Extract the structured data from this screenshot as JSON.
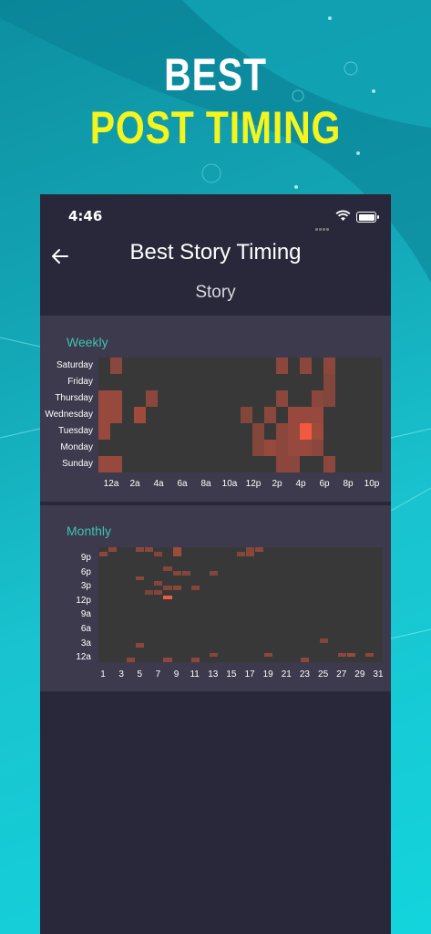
{
  "promo": {
    "line1": "BEST",
    "line2": "POST TIMING"
  },
  "status_bar": {
    "time": "4:46"
  },
  "header": {
    "title": "Best Story Timing",
    "subtitle": "Story"
  },
  "colors": {
    "accent_teal": "#3ec3b3",
    "headline_yellow": "#f5f51e",
    "heat_base": "#393838",
    "heat_hot": "#f25a40"
  },
  "weekly": {
    "title": "Weekly",
    "rows": [
      "Saturday",
      "Friday",
      "Thursday",
      "Wednesday",
      "Tuesday",
      "Monday",
      "Sunday"
    ],
    "x_ticks": [
      "12a",
      "2a",
      "4a",
      "6a",
      "8a",
      "10a",
      "12p",
      "2p",
      "4p",
      "6p",
      "8p",
      "10p"
    ],
    "cells": [
      {
        "hour": 1,
        "day": 0,
        "level": 0.45
      },
      {
        "hour": 15,
        "day": 0,
        "level": 0.45
      },
      {
        "hour": 17,
        "day": 0,
        "level": 0.45
      },
      {
        "hour": 19,
        "day": 0,
        "level": 0.45
      },
      {
        "hour": 19,
        "day": 1,
        "level": 0.4
      },
      {
        "hour": 0,
        "day": 2,
        "level": 0.5
      },
      {
        "hour": 1,
        "day": 2,
        "level": 0.5
      },
      {
        "hour": 4,
        "day": 2,
        "level": 0.45
      },
      {
        "hour": 15,
        "day": 2,
        "level": 0.45
      },
      {
        "hour": 18,
        "day": 2,
        "level": 0.45
      },
      {
        "hour": 19,
        "day": 2,
        "level": 0.4
      },
      {
        "hour": 0,
        "day": 3,
        "level": 0.5
      },
      {
        "hour": 1,
        "day": 3,
        "level": 0.5
      },
      {
        "hour": 3,
        "day": 3,
        "level": 0.55
      },
      {
        "hour": 12,
        "day": 3,
        "level": 0.4
      },
      {
        "hour": 14,
        "day": 3,
        "level": 0.45
      },
      {
        "hour": 16,
        "day": 3,
        "level": 0.5
      },
      {
        "hour": 17,
        "day": 3,
        "level": 0.5
      },
      {
        "hour": 18,
        "day": 3,
        "level": 0.5
      },
      {
        "hour": 0,
        "day": 4,
        "level": 0.5
      },
      {
        "hour": 13,
        "day": 4,
        "level": 0.4
      },
      {
        "hour": 15,
        "day": 4,
        "level": 0.45
      },
      {
        "hour": 16,
        "day": 4,
        "level": 0.5
      },
      {
        "hour": 17,
        "day": 4,
        "level": 1.0
      },
      {
        "hour": 18,
        "day": 4,
        "level": 0.55
      },
      {
        "hour": 13,
        "day": 5,
        "level": 0.4
      },
      {
        "hour": 14,
        "day": 5,
        "level": 0.5
      },
      {
        "hour": 15,
        "day": 5,
        "level": 0.45
      },
      {
        "hour": 16,
        "day": 5,
        "level": 0.5
      },
      {
        "hour": 17,
        "day": 5,
        "level": 0.5
      },
      {
        "hour": 18,
        "day": 5,
        "level": 0.45
      },
      {
        "hour": 0,
        "day": 6,
        "level": 0.5
      },
      {
        "hour": 1,
        "day": 6,
        "level": 0.5
      },
      {
        "hour": 15,
        "day": 6,
        "level": 0.45
      },
      {
        "hour": 16,
        "day": 6,
        "level": 0.45
      },
      {
        "hour": 19,
        "day": 6,
        "level": 0.45
      }
    ]
  },
  "monthly": {
    "title": "Monthly",
    "rows": [
      "9p",
      "6p",
      "3p",
      "12p",
      "9a",
      "6a",
      "3a",
      "12a"
    ],
    "x_ticks": [
      "1",
      "3",
      "5",
      "7",
      "9",
      "11",
      "13",
      "15",
      "17",
      "19",
      "21",
      "23",
      "25",
      "27",
      "29",
      "31"
    ],
    "cells": [
      {
        "day": 1,
        "hour": 22,
        "level": 0.45
      },
      {
        "day": 2,
        "hour": 23,
        "level": 0.45
      },
      {
        "day": 5,
        "hour": 23,
        "level": 0.45
      },
      {
        "day": 6,
        "hour": 23,
        "level": 0.45
      },
      {
        "day": 7,
        "hour": 22,
        "level": 0.4
      },
      {
        "day": 9,
        "hour": 23,
        "level": 0.55
      },
      {
        "day": 9,
        "hour": 22,
        "level": 0.55
      },
      {
        "day": 16,
        "hour": 22,
        "level": 0.4
      },
      {
        "day": 17,
        "hour": 22,
        "level": 0.45
      },
      {
        "day": 17,
        "hour": 23,
        "level": 0.4
      },
      {
        "day": 18,
        "hour": 23,
        "level": 0.45
      },
      {
        "day": 8,
        "hour": 19,
        "level": 0.4
      },
      {
        "day": 9,
        "hour": 18,
        "level": 0.4
      },
      {
        "day": 10,
        "hour": 18,
        "level": 0.4
      },
      {
        "day": 5,
        "hour": 17,
        "level": 0.45
      },
      {
        "day": 7,
        "hour": 16,
        "level": 0.4
      },
      {
        "day": 13,
        "hour": 18,
        "level": 0.4
      },
      {
        "day": 8,
        "hour": 15,
        "level": 0.4
      },
      {
        "day": 9,
        "hour": 15,
        "level": 0.45
      },
      {
        "day": 11,
        "hour": 15,
        "level": 0.4
      },
      {
        "day": 6,
        "hour": 14,
        "level": 0.35
      },
      {
        "day": 7,
        "hour": 14,
        "level": 0.4
      },
      {
        "day": 8,
        "hour": 13,
        "level": 1.0
      },
      {
        "day": 5,
        "hour": 3,
        "level": 0.45
      },
      {
        "day": 25,
        "hour": 4,
        "level": 0.4
      },
      {
        "day": 4,
        "hour": 0,
        "level": 0.45
      },
      {
        "day": 8,
        "hour": 0,
        "level": 0.45
      },
      {
        "day": 11,
        "hour": 0,
        "level": 0.45
      },
      {
        "day": 13,
        "hour": 1,
        "level": 0.4
      },
      {
        "day": 19,
        "hour": 1,
        "level": 0.45
      },
      {
        "day": 23,
        "hour": 0,
        "level": 0.45
      },
      {
        "day": 27,
        "hour": 1,
        "level": 0.45
      },
      {
        "day": 28,
        "hour": 1,
        "level": 0.5
      },
      {
        "day": 30,
        "hour": 1,
        "level": 0.45
      }
    ]
  }
}
